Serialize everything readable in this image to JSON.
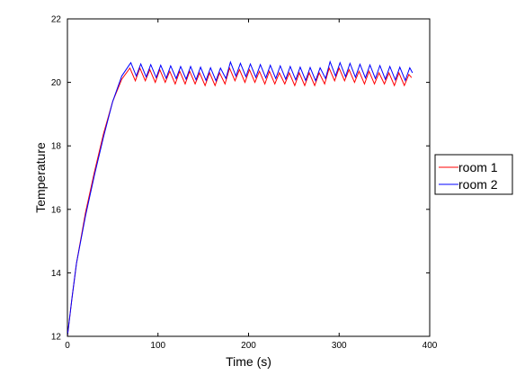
{
  "chart_data": {
    "type": "line",
    "title": "",
    "xlabel": "Time (s)",
    "ylabel": "Temperature",
    "xlim": [
      0,
      400
    ],
    "ylim": [
      12,
      22
    ],
    "xticks": [
      0,
      100,
      200,
      300,
      400
    ],
    "yticks": [
      12,
      14,
      16,
      18,
      20,
      22
    ],
    "grid": false,
    "legend_position": "right",
    "series": [
      {
        "name": "room 1",
        "color": "#ff0000",
        "x": [
          0,
          5,
          10,
          20,
          30,
          40,
          50,
          60,
          69,
          75,
          80,
          86,
          91,
          97,
          102,
          108,
          113,
          119,
          124,
          130,
          135,
          141,
          146,
          152,
          157,
          163,
          168,
          174,
          179,
          185,
          190,
          196,
          201,
          207,
          212,
          218,
          223,
          229,
          234,
          240,
          245,
          251,
          256,
          262,
          267,
          273,
          278,
          284,
          289,
          295,
          300,
          306,
          311,
          317,
          322,
          328,
          333,
          339,
          344,
          350,
          355,
          361,
          366,
          372,
          377,
          380
        ],
        "y": [
          12.0,
          13.2,
          14.3,
          15.9,
          17.2,
          18.4,
          19.4,
          20.1,
          20.45,
          20.05,
          20.45,
          20.05,
          20.4,
          20.0,
          20.4,
          20.0,
          20.35,
          19.95,
          20.35,
          19.95,
          20.35,
          19.95,
          20.3,
          19.9,
          20.3,
          19.9,
          20.3,
          19.95,
          20.45,
          20.05,
          20.4,
          20.0,
          20.4,
          20.0,
          20.35,
          19.95,
          20.35,
          19.95,
          20.3,
          19.95,
          20.3,
          19.9,
          20.3,
          19.9,
          20.3,
          19.9,
          20.3,
          19.95,
          20.45,
          20.05,
          20.45,
          20.05,
          20.4,
          20.0,
          20.35,
          19.95,
          20.35,
          19.95,
          20.3,
          19.95,
          20.3,
          19.9,
          20.3,
          19.9,
          20.25,
          20.15
        ]
      },
      {
        "name": "room 2",
        "color": "#0000ff",
        "x": [
          0,
          5,
          10,
          20,
          30,
          40,
          50,
          60,
          70,
          76,
          81,
          87,
          92,
          98,
          103,
          109,
          114,
          120,
          125,
          131,
          136,
          142,
          147,
          153,
          158,
          164,
          169,
          175,
          180,
          186,
          191,
          197,
          202,
          208,
          213,
          219,
          224,
          230,
          235,
          241,
          246,
          252,
          257,
          263,
          268,
          274,
          279,
          285,
          290,
          296,
          301,
          307,
          312,
          318,
          323,
          329,
          334,
          340,
          345,
          351,
          356,
          362,
          367,
          373,
          378,
          381
        ],
        "y": [
          12.0,
          13.2,
          14.3,
          15.8,
          17.1,
          18.3,
          19.4,
          20.2,
          20.62,
          20.2,
          20.58,
          20.17,
          20.56,
          20.15,
          20.54,
          20.13,
          20.52,
          20.12,
          20.5,
          20.1,
          20.5,
          20.08,
          20.48,
          20.06,
          20.46,
          20.05,
          20.45,
          20.12,
          20.64,
          20.2,
          20.6,
          20.18,
          20.58,
          20.16,
          20.56,
          20.14,
          20.54,
          20.12,
          20.52,
          20.1,
          20.5,
          20.08,
          20.48,
          20.06,
          20.47,
          20.05,
          20.46,
          20.12,
          20.65,
          20.2,
          20.62,
          20.18,
          20.6,
          20.16,
          20.57,
          20.14,
          20.55,
          20.12,
          20.53,
          20.1,
          20.5,
          20.08,
          20.48,
          20.06,
          20.46,
          20.3
        ]
      }
    ]
  }
}
